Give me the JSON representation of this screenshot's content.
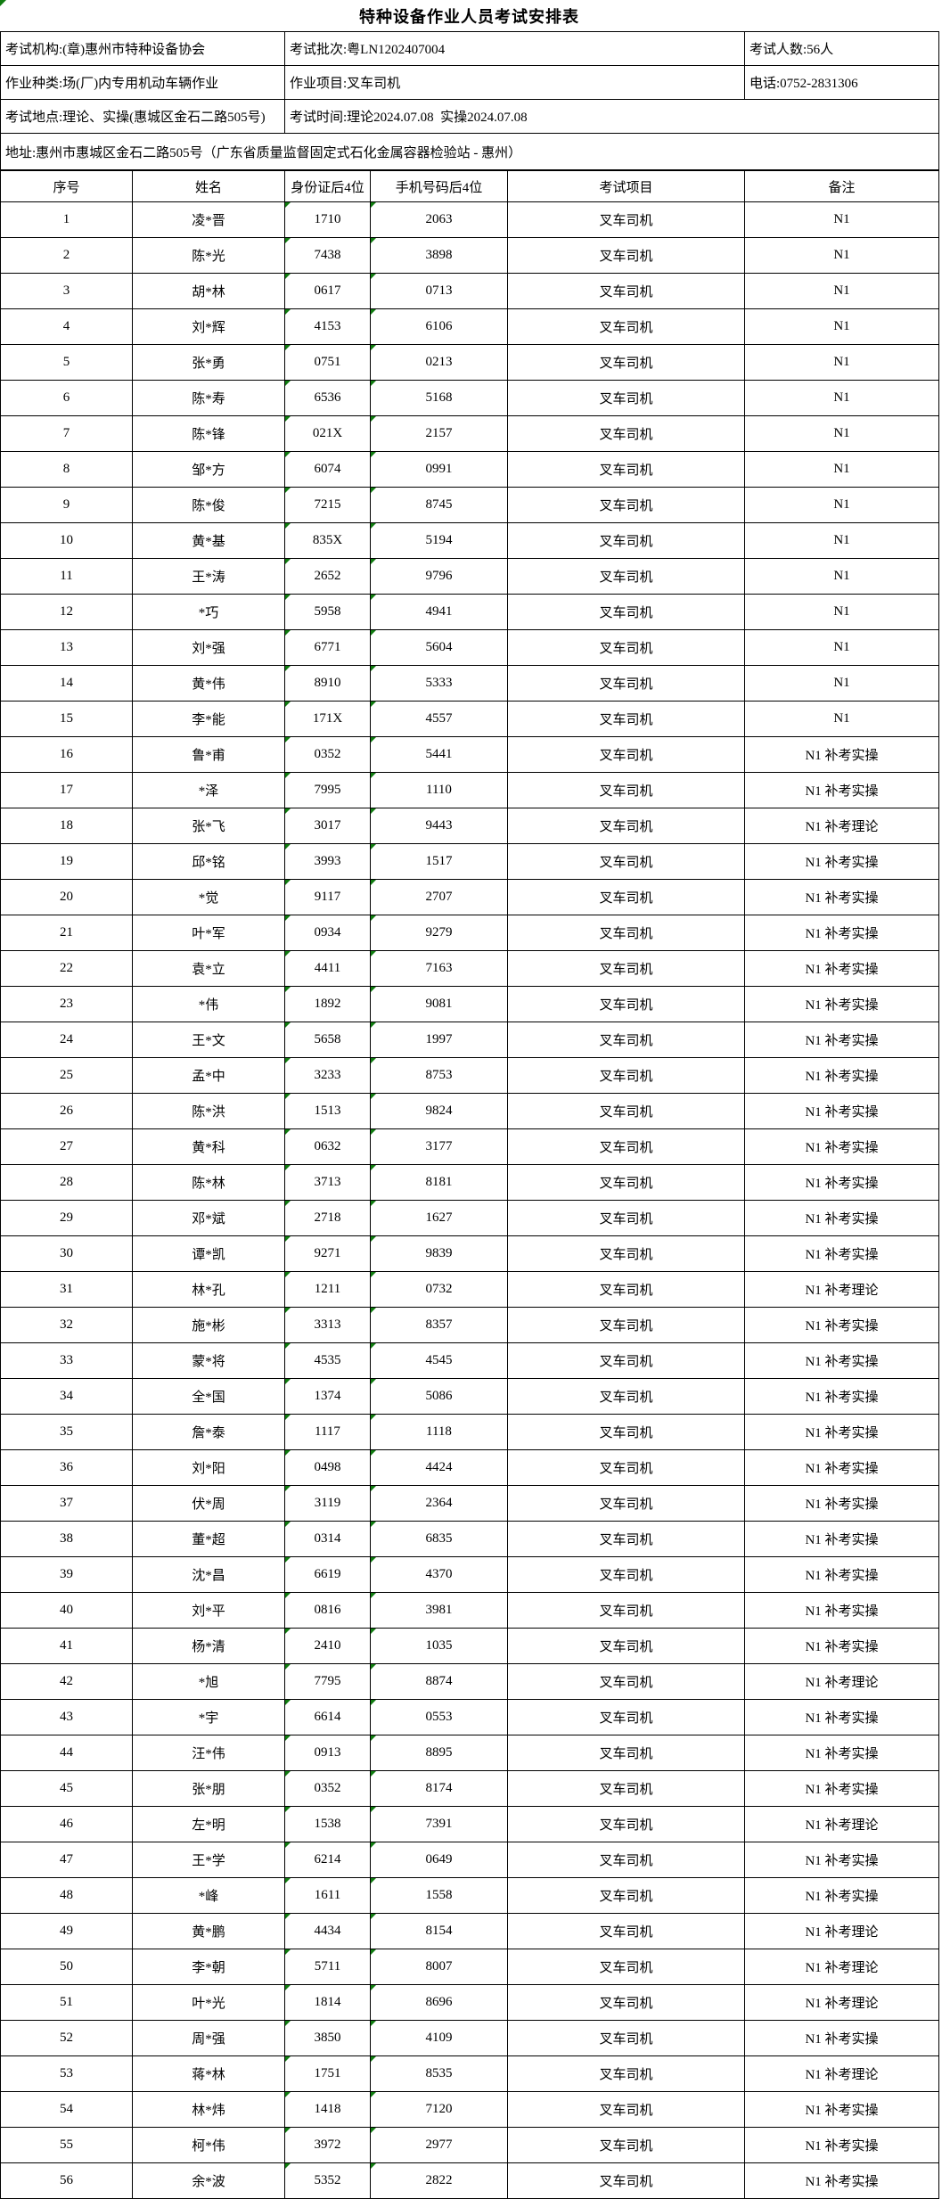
{
  "title": "特种设备作业人员考试安排表",
  "accent_color": "#107c10",
  "info": {
    "org": "考试机构:(章)惠州市特种设备协会",
    "batch": "考试批次:粤LN1202407004",
    "count": "考试人数:56人",
    "category": "作业种类:场(厂)内专用机动车辆作业",
    "project": "作业项目:叉车司机",
    "phone": "电话:0752-2831306",
    "location": "考试地点:理论、实操(惠城区金石二路505号)",
    "time": "考试时间:理论2024.07.08  实操2024.07.08",
    "address": "地址:惠州市惠城区金石二路505号（广东省质量监督固定式石化金属容器检验站 - 惠州）"
  },
  "table": {
    "headers": [
      "序号",
      "姓名",
      "身份证后4位",
      "手机号码后4位",
      "考试项目",
      "备注"
    ],
    "rows": [
      [
        "1",
        "凌*晋",
        "1710",
        "2063",
        "叉车司机",
        "N1"
      ],
      [
        "2",
        "陈*光",
        "7438",
        "3898",
        "叉车司机",
        "N1"
      ],
      [
        "3",
        "胡*林",
        "0617",
        "0713",
        "叉车司机",
        "N1"
      ],
      [
        "4",
        "刘*辉",
        "4153",
        "6106",
        "叉车司机",
        "N1"
      ],
      [
        "5",
        "张*勇",
        "0751",
        "0213",
        "叉车司机",
        "N1"
      ],
      [
        "6",
        "陈*寿",
        "6536",
        "5168",
        "叉车司机",
        "N1"
      ],
      [
        "7",
        "陈*锋",
        "021X",
        "2157",
        "叉车司机",
        "N1"
      ],
      [
        "8",
        "邹*方",
        "6074",
        "0991",
        "叉车司机",
        "N1"
      ],
      [
        "9",
        "陈*俊",
        "7215",
        "8745",
        "叉车司机",
        "N1"
      ],
      [
        "10",
        "黄*基",
        "835X",
        "5194",
        "叉车司机",
        "N1"
      ],
      [
        "11",
        "王*涛",
        "2652",
        "9796",
        "叉车司机",
        "N1"
      ],
      [
        "12",
        "*巧",
        "5958",
        "4941",
        "叉车司机",
        "N1"
      ],
      [
        "13",
        "刘*强",
        "6771",
        "5604",
        "叉车司机",
        "N1"
      ],
      [
        "14",
        "黄*伟",
        "8910",
        "5333",
        "叉车司机",
        "N1"
      ],
      [
        "15",
        "李*能",
        "171X",
        "4557",
        "叉车司机",
        "N1"
      ],
      [
        "16",
        "鲁*甫",
        "0352",
        "5441",
        "叉车司机",
        "N1 补考实操"
      ],
      [
        "17",
        "*泽",
        "7995",
        "1110",
        "叉车司机",
        "N1 补考实操"
      ],
      [
        "18",
        "张*飞",
        "3017",
        "9443",
        "叉车司机",
        "N1 补考理论"
      ],
      [
        "19",
        "邱*铭",
        "3993",
        "1517",
        "叉车司机",
        "N1 补考实操"
      ],
      [
        "20",
        "*觉",
        "9117",
        "2707",
        "叉车司机",
        "N1 补考实操"
      ],
      [
        "21",
        "叶*军",
        "0934",
        "9279",
        "叉车司机",
        "N1 补考实操"
      ],
      [
        "22",
        "袁*立",
        "4411",
        "7163",
        "叉车司机",
        "N1 补考实操"
      ],
      [
        "23",
        "*伟",
        "1892",
        "9081",
        "叉车司机",
        "N1 补考实操"
      ],
      [
        "24",
        "王*文",
        "5658",
        "1997",
        "叉车司机",
        "N1 补考实操"
      ],
      [
        "25",
        "孟*中",
        "3233",
        "8753",
        "叉车司机",
        "N1 补考实操"
      ],
      [
        "26",
        "陈*洪",
        "1513",
        "9824",
        "叉车司机",
        "N1 补考实操"
      ],
      [
        "27",
        "黄*科",
        "0632",
        "3177",
        "叉车司机",
        "N1 补考实操"
      ],
      [
        "28",
        "陈*林",
        "3713",
        "8181",
        "叉车司机",
        "N1 补考实操"
      ],
      [
        "29",
        "邓*斌",
        "2718",
        "1627",
        "叉车司机",
        "N1 补考实操"
      ],
      [
        "30",
        "谭*凯",
        "9271",
        "9839",
        "叉车司机",
        "N1 补考实操"
      ],
      [
        "31",
        "林*孔",
        "1211",
        "0732",
        "叉车司机",
        "N1 补考理论"
      ],
      [
        "32",
        "施*彬",
        "3313",
        "8357",
        "叉车司机",
        "N1 补考实操"
      ],
      [
        "33",
        "蒙*将",
        "4535",
        "4545",
        "叉车司机",
        "N1 补考实操"
      ],
      [
        "34",
        "全*国",
        "1374",
        "5086",
        "叉车司机",
        "N1 补考实操"
      ],
      [
        "35",
        "詹*泰",
        "1117",
        "1118",
        "叉车司机",
        "N1 补考实操"
      ],
      [
        "36",
        "刘*阳",
        "0498",
        "4424",
        "叉车司机",
        "N1 补考实操"
      ],
      [
        "37",
        "伏*周",
        "3119",
        "2364",
        "叉车司机",
        "N1 补考实操"
      ],
      [
        "38",
        "董*超",
        "0314",
        "6835",
        "叉车司机",
        "N1 补考实操"
      ],
      [
        "39",
        "沈*昌",
        "6619",
        "4370",
        "叉车司机",
        "N1 补考实操"
      ],
      [
        "40",
        "刘*平",
        "0816",
        "3981",
        "叉车司机",
        "N1 补考实操"
      ],
      [
        "41",
        "杨*清",
        "2410",
        "1035",
        "叉车司机",
        "N1 补考实操"
      ],
      [
        "42",
        "*旭",
        "7795",
        "8874",
        "叉车司机",
        "N1 补考理论"
      ],
      [
        "43",
        "*宇",
        "6614",
        "0553",
        "叉车司机",
        "N1 补考实操"
      ],
      [
        "44",
        "汪*伟",
        "0913",
        "8895",
        "叉车司机",
        "N1 补考实操"
      ],
      [
        "45",
        "张*朋",
        "0352",
        "8174",
        "叉车司机",
        "N1 补考实操"
      ],
      [
        "46",
        "左*明",
        "1538",
        "7391",
        "叉车司机",
        "N1 补考理论"
      ],
      [
        "47",
        "王*学",
        "6214",
        "0649",
        "叉车司机",
        "N1 补考实操"
      ],
      [
        "48",
        "*峰",
        "1611",
        "1558",
        "叉车司机",
        "N1 补考实操"
      ],
      [
        "49",
        "黄*鹏",
        "4434",
        "8154",
        "叉车司机",
        "N1 补考理论"
      ],
      [
        "50",
        "李*朝",
        "5711",
        "8007",
        "叉车司机",
        "N1 补考理论"
      ],
      [
        "51",
        "叶*光",
        "1814",
        "8696",
        "叉车司机",
        "N1 补考理论"
      ],
      [
        "52",
        "周*强",
        "3850",
        "4109",
        "叉车司机",
        "N1 补考实操"
      ],
      [
        "53",
        "蒋*林",
        "1751",
        "8535",
        "叉车司机",
        "N1 补考理论"
      ],
      [
        "54",
        "林*炜",
        "1418",
        "7120",
        "叉车司机",
        "N1 补考实操"
      ],
      [
        "55",
        "柯*伟",
        "3972",
        "2977",
        "叉车司机",
        "N1 补考实操"
      ],
      [
        "56",
        "余*波",
        "5352",
        "2822",
        "叉车司机",
        "N1 补考实操"
      ]
    ]
  }
}
